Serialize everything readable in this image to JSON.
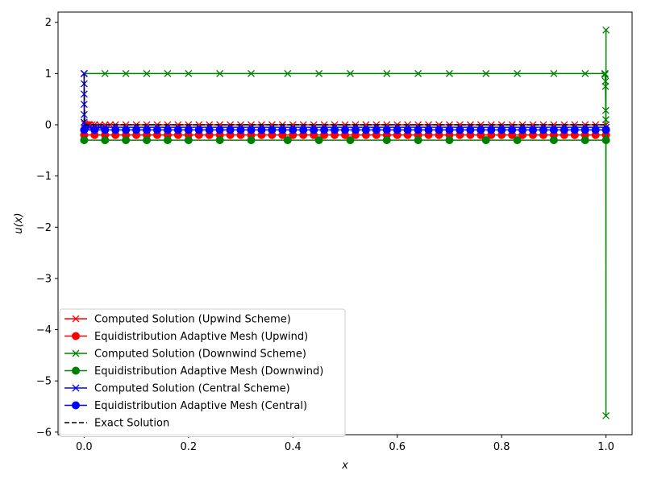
{
  "chart_data": {
    "type": "line",
    "title": "",
    "xlabel": "x",
    "ylabel": "u(x)",
    "xlim": [
      -0.05,
      1.05
    ],
    "ylim": [
      -6.05,
      2.2
    ],
    "xticks": [
      0.0,
      0.2,
      0.4,
      0.6,
      0.8,
      1.0
    ],
    "xtick_labels": [
      "0.0",
      "0.2",
      "0.4",
      "0.6",
      "0.8",
      "1.0"
    ],
    "yticks": [
      2,
      1,
      0,
      -1,
      -2,
      -3,
      -4,
      -5,
      -6
    ],
    "ytick_labels": [
      "2",
      "1",
      "0",
      "−1",
      "−2",
      "−3",
      "−4",
      "−5",
      "−6"
    ],
    "grid": false,
    "legend_position": "lower-left",
    "series": [
      {
        "name": "Computed Solution (Upwind Scheme)",
        "color": "#ff0000",
        "marker": "x",
        "linestyle": "solid",
        "x": [
          0.0,
          0.001,
          0.002,
          0.004,
          0.006,
          0.008,
          0.01,
          0.015,
          0.02,
          0.03,
          0.04,
          0.05,
          0.06,
          0.08,
          0.1,
          0.12,
          0.14,
          0.16,
          0.18,
          0.2,
          0.22,
          0.24,
          0.26,
          0.28,
          0.3,
          0.32,
          0.34,
          0.36,
          0.38,
          0.4,
          0.42,
          0.44,
          0.46,
          0.48,
          0.5,
          0.52,
          0.54,
          0.56,
          0.58,
          0.6,
          0.62,
          0.64,
          0.66,
          0.68,
          0.7,
          0.72,
          0.74,
          0.76,
          0.78,
          0.8,
          0.82,
          0.84,
          0.86,
          0.88,
          0.9,
          0.92,
          0.94,
          0.96,
          0.98,
          1.0
        ],
        "y": [
          1.0,
          0.02,
          0.0,
          0.0,
          0.0,
          0.0,
          0.0,
          0.0,
          0.0,
          0.0,
          0.0,
          0.0,
          0.0,
          0.0,
          0.0,
          0.0,
          0.0,
          0.0,
          0.0,
          0.0,
          0.0,
          0.0,
          0.0,
          0.0,
          0.0,
          0.0,
          0.0,
          0.0,
          0.0,
          0.0,
          0.0,
          0.0,
          0.0,
          0.0,
          0.0,
          0.0,
          0.0,
          0.0,
          0.0,
          0.0,
          0.0,
          0.0,
          0.0,
          0.0,
          0.0,
          0.0,
          0.0,
          0.0,
          0.0,
          0.0,
          0.0,
          0.0,
          0.0,
          0.0,
          0.0,
          0.0,
          0.0,
          0.0,
          0.0,
          0.0
        ]
      },
      {
        "name": "Equidistribution Adaptive Mesh (Upwind)",
        "color": "#ff0000",
        "marker": "o",
        "linestyle": "solid",
        "x": [
          0.0,
          0.02,
          0.04,
          0.06,
          0.08,
          0.1,
          0.12,
          0.14,
          0.16,
          0.18,
          0.2,
          0.22,
          0.24,
          0.26,
          0.28,
          0.3,
          0.32,
          0.34,
          0.36,
          0.38,
          0.4,
          0.42,
          0.44,
          0.46,
          0.48,
          0.5,
          0.52,
          0.54,
          0.56,
          0.58,
          0.6,
          0.62,
          0.64,
          0.66,
          0.68,
          0.7,
          0.72,
          0.74,
          0.76,
          0.78,
          0.8,
          0.82,
          0.84,
          0.86,
          0.88,
          0.9,
          0.92,
          0.94,
          0.96,
          0.98,
          1.0
        ],
        "y": [
          -0.2,
          -0.2,
          -0.2,
          -0.2,
          -0.2,
          -0.2,
          -0.2,
          -0.2,
          -0.2,
          -0.2,
          -0.2,
          -0.2,
          -0.2,
          -0.2,
          -0.2,
          -0.2,
          -0.2,
          -0.2,
          -0.2,
          -0.2,
          -0.2,
          -0.2,
          -0.2,
          -0.2,
          -0.2,
          -0.2,
          -0.2,
          -0.2,
          -0.2,
          -0.2,
          -0.2,
          -0.2,
          -0.2,
          -0.2,
          -0.2,
          -0.2,
          -0.2,
          -0.2,
          -0.2,
          -0.2,
          -0.2,
          -0.2,
          -0.2,
          -0.2,
          -0.2,
          -0.2,
          -0.2,
          -0.2,
          -0.2,
          -0.2,
          -0.2
        ]
      },
      {
        "name": "Computed Solution (Downwind Scheme)",
        "color": "#008000",
        "marker": "x",
        "linestyle": "solid",
        "x": [
          0.0,
          0.04,
          0.08,
          0.12,
          0.16,
          0.2,
          0.26,
          0.32,
          0.39,
          0.45,
          0.51,
          0.58,
          0.64,
          0.7,
          0.77,
          0.83,
          0.9,
          0.96,
          0.998,
          0.998,
          0.999,
          0.999,
          0.9995,
          0.9997,
          0.9999,
          1.0
        ],
        "y": [
          1.0,
          1.0,
          1.0,
          1.0,
          1.0,
          1.0,
          1.0,
          1.0,
          1.0,
          1.0,
          1.0,
          1.0,
          1.0,
          1.0,
          1.0,
          1.0,
          1.0,
          1.0,
          1.0,
          0.98,
          0.85,
          0.75,
          0.28,
          0.1,
          -5.68,
          1.85
        ]
      },
      {
        "name": "Equidistribution Adaptive Mesh (Downwind)",
        "color": "#008000",
        "marker": "o",
        "linestyle": "solid",
        "x": [
          0.0,
          0.04,
          0.08,
          0.12,
          0.16,
          0.2,
          0.26,
          0.32,
          0.39,
          0.45,
          0.51,
          0.58,
          0.64,
          0.7,
          0.77,
          0.83,
          0.9,
          0.96,
          1.0
        ],
        "y": [
          -0.3,
          -0.3,
          -0.3,
          -0.3,
          -0.3,
          -0.3,
          -0.3,
          -0.3,
          -0.3,
          -0.3,
          -0.3,
          -0.3,
          -0.3,
          -0.3,
          -0.3,
          -0.3,
          -0.3,
          -0.3,
          -0.3
        ]
      },
      {
        "name": "Computed Solution (Central Scheme)",
        "color": "#0000ff",
        "marker": "x",
        "linestyle": "solid",
        "x": [
          0.0,
          0.0,
          0.0,
          0.0,
          0.0,
          0.0,
          0.001,
          0.002,
          0.005,
          0.01,
          0.02,
          0.03,
          0.04,
          0.06,
          0.08,
          0.1,
          0.12,
          0.14,
          0.16,
          0.18,
          0.2,
          0.22,
          0.24,
          0.26,
          0.28,
          0.3,
          0.32,
          0.34,
          0.36,
          0.38,
          0.4,
          0.42,
          0.44,
          0.46,
          0.48,
          0.5,
          0.52,
          0.54,
          0.56,
          0.58,
          0.6,
          0.62,
          0.64,
          0.66,
          0.68,
          0.7,
          0.72,
          0.74,
          0.76,
          0.78,
          0.8,
          0.82,
          0.84,
          0.86,
          0.88,
          0.9,
          0.92,
          0.94,
          0.96,
          0.98,
          1.0
        ],
        "y": [
          1.0,
          0.8,
          0.6,
          0.4,
          0.2,
          0.05,
          -0.05,
          -0.05,
          -0.05,
          -0.05,
          -0.05,
          -0.05,
          -0.05,
          -0.05,
          -0.05,
          -0.05,
          -0.05,
          -0.05,
          -0.05,
          -0.05,
          -0.05,
          -0.05,
          -0.05,
          -0.05,
          -0.05,
          -0.05,
          -0.05,
          -0.05,
          -0.05,
          -0.05,
          -0.05,
          -0.05,
          -0.05,
          -0.05,
          -0.05,
          -0.05,
          -0.05,
          -0.05,
          -0.05,
          -0.05,
          -0.05,
          -0.05,
          -0.05,
          -0.05,
          -0.05,
          -0.05,
          -0.05,
          -0.05,
          -0.05,
          -0.05,
          -0.05,
          -0.05,
          -0.05,
          -0.05,
          -0.05,
          -0.05,
          -0.05,
          -0.05,
          -0.05,
          -0.05,
          -0.05
        ]
      },
      {
        "name": "Equidistribution Adaptive Mesh (Central)",
        "color": "#0000ff",
        "marker": "o",
        "linestyle": "solid",
        "x": [
          0.0,
          0.02,
          0.04,
          0.06,
          0.08,
          0.1,
          0.12,
          0.14,
          0.16,
          0.18,
          0.2,
          0.22,
          0.24,
          0.26,
          0.28,
          0.3,
          0.32,
          0.34,
          0.36,
          0.38,
          0.4,
          0.42,
          0.44,
          0.46,
          0.48,
          0.5,
          0.52,
          0.54,
          0.56,
          0.58,
          0.6,
          0.62,
          0.64,
          0.66,
          0.68,
          0.7,
          0.72,
          0.74,
          0.76,
          0.78,
          0.8,
          0.82,
          0.84,
          0.86,
          0.88,
          0.9,
          0.92,
          0.94,
          0.96,
          0.98,
          1.0
        ],
        "y": [
          -0.1,
          -0.1,
          -0.1,
          -0.1,
          -0.1,
          -0.1,
          -0.1,
          -0.1,
          -0.1,
          -0.1,
          -0.1,
          -0.1,
          -0.1,
          -0.1,
          -0.1,
          -0.1,
          -0.1,
          -0.1,
          -0.1,
          -0.1,
          -0.1,
          -0.1,
          -0.1,
          -0.1,
          -0.1,
          -0.1,
          -0.1,
          -0.1,
          -0.1,
          -0.1,
          -0.1,
          -0.1,
          -0.1,
          -0.1,
          -0.1,
          -0.1,
          -0.1,
          -0.1,
          -0.1,
          -0.1,
          -0.1,
          -0.1,
          -0.1,
          -0.1,
          -0.1,
          -0.1,
          -0.1,
          -0.1,
          -0.1,
          -0.1,
          -0.1
        ]
      },
      {
        "name": "Exact Solution",
        "color": "#000000",
        "marker": "none",
        "linestyle": "dashed",
        "x": [
          0.0,
          0.0005,
          0.001,
          0.002,
          0.005,
          0.01,
          0.05,
          0.1,
          0.2,
          0.3,
          0.4,
          0.5,
          0.6,
          0.7,
          0.8,
          0.9,
          1.0
        ],
        "y": [
          1.0,
          0.4,
          0.0,
          0.0,
          0.0,
          0.0,
          0.0,
          0.0,
          0.0,
          0.0,
          0.0,
          0.0,
          0.0,
          0.0,
          0.0,
          0.0,
          0.0
        ]
      }
    ]
  }
}
